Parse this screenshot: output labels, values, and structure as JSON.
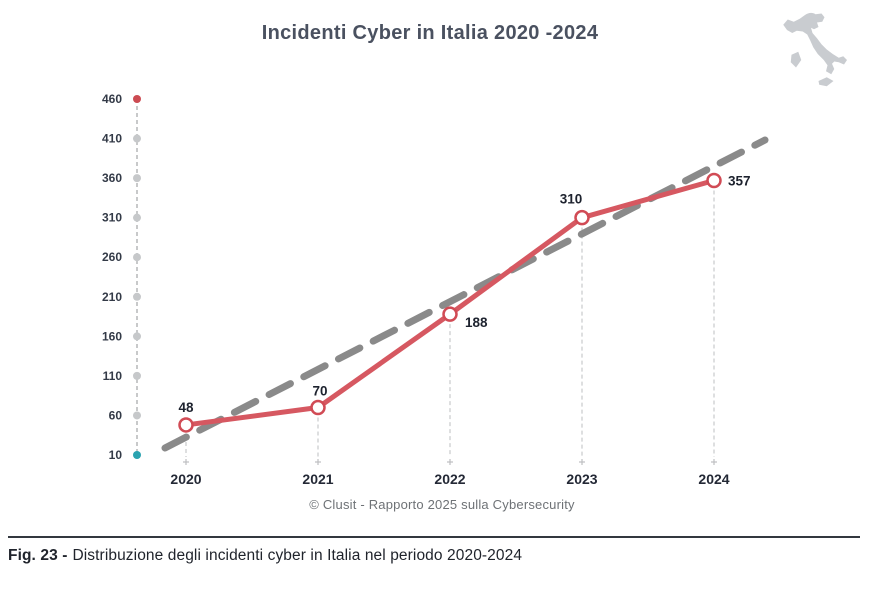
{
  "title": "Incidenti Cyber in Italia 2020 -2024",
  "attribution": "© Clusit - Rapporto 2025 sulla Cybersecurity",
  "figure_caption": {
    "label": "Fig. 23 -",
    "text": "Distribuzione degli incidenti cyber in Italia nel periodo 2020-2024"
  },
  "colors": {
    "series": "#d65861",
    "series_stroke": "#d14b55",
    "trend": "#8a8a8a",
    "tick_dot_top": "#cc4b52",
    "tick_dot_bottom": "#2ba3b0",
    "tick_dot": "#c6c8ca",
    "axis_dash": "#b5b7b9",
    "drop_line": "#bdbfc1",
    "italy_map": "#c9ccd0"
  },
  "chart_data": {
    "type": "line",
    "title": "Incidenti Cyber in Italia 2020 -2024",
    "categories": [
      "2020",
      "2021",
      "2022",
      "2023",
      "2024"
    ],
    "series": [
      {
        "name": "incidenti-cyber",
        "values": [
          48,
          70,
          188,
          310,
          357
        ],
        "style": "solid",
        "marker": "open-circle"
      },
      {
        "name": "trend",
        "style": "dashed",
        "note": "straight dashed trend line from below 2020 value to above 2024 value"
      }
    ],
    "y_ticks": [
      460,
      410,
      360,
      310,
      260,
      210,
      160,
      110,
      60,
      10
    ],
    "ylim": [
      10,
      460
    ],
    "xlabel": "",
    "ylabel": "",
    "grid": false,
    "legend": "none"
  }
}
